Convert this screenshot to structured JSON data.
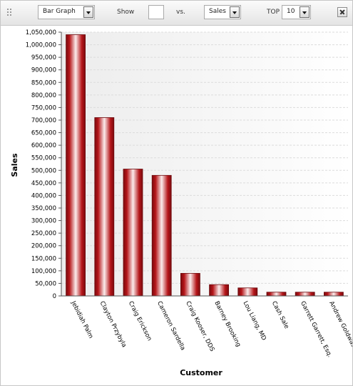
{
  "toolbar": {
    "chart_type": "Bar Graph",
    "show_label": "Show",
    "show_value": "",
    "vs_label": "vs.",
    "measure": "Sales",
    "top_label": "TOP",
    "top_value": "10"
  },
  "icons": {
    "drag": "drag-handle-icon",
    "close": "close-icon",
    "dropdown": "chevron-down-icon"
  },
  "chart_data": {
    "type": "bar",
    "xlabel": "Customer",
    "ylabel": "Sales",
    "ylim": [
      0,
      1050000
    ],
    "ytick_step": 50000,
    "grid": true,
    "bar_color": "#b11116",
    "categories": [
      "Jebidiah Palm",
      "Clayton Przybyla",
      "Craig Erickson",
      "Cameron Sardella",
      "Craig Kooser, DDS",
      "Barney Brooking",
      "Lou Liang, MD",
      "Cash Sale",
      "Garrett Garrett, Esq.",
      "Andrew Goldwasser"
    ],
    "values": [
      1040000,
      710000,
      505000,
      480000,
      90000,
      45000,
      32000,
      15000,
      15000,
      15000
    ]
  }
}
